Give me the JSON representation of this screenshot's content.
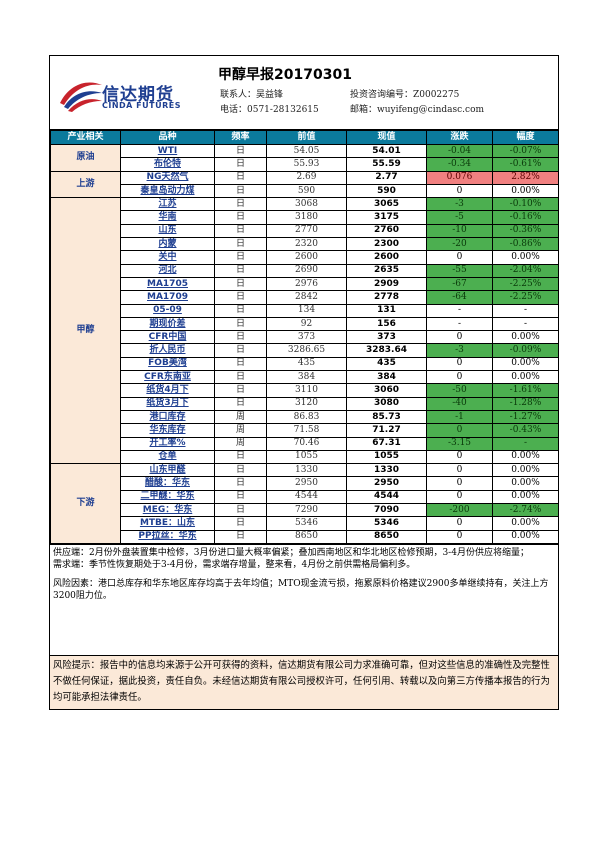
{
  "header": {
    "title": "甲醇早报20170301",
    "logo_cn": "信达期货",
    "logo_en": "CINDA FUTURES",
    "contact_label": "联系人：吴益锋",
    "license_label": "投资咨询编号：Z0002275",
    "phone_label": "电话：0571-28132615",
    "email_label": "邮箱：wuyifeng@cindasc.com"
  },
  "colors": {
    "header_bg": "#0b7a9c",
    "category_bg": "#fbe9d8",
    "down": "#4caf50",
    "up": "#f08080",
    "brand": "#1f3f91"
  },
  "table": {
    "headers": [
      "产业相关",
      "品种",
      "频率",
      "前值",
      "现值",
      "涨跌",
      "幅度"
    ],
    "groups": [
      {
        "category": "原油",
        "rows": [
          {
            "name": "WTI",
            "freq": "日",
            "prev": "54.05",
            "curr": "54.01",
            "chg": "-0.04",
            "pct": "-0.07%",
            "dir": "neg"
          },
          {
            "name": "布伦特",
            "freq": "日",
            "prev": "55.93",
            "curr": "55.59",
            "chg": "-0.34",
            "pct": "-0.61%",
            "dir": "neg"
          }
        ]
      },
      {
        "category": "上游",
        "rows": [
          {
            "name": "NG天然气",
            "freq": "日",
            "prev": "2.69",
            "curr": "2.77",
            "chg": "0.076",
            "pct": "2.82%",
            "dir": "pos"
          },
          {
            "name": "秦皇岛动力煤",
            "freq": "日",
            "prev": "590",
            "curr": "590",
            "chg": "0",
            "pct": "0.00%",
            "dir": "zero"
          }
        ]
      },
      {
        "category": "甲醇",
        "rows": [
          {
            "name": "江苏",
            "freq": "日",
            "prev": "3068",
            "curr": "3065",
            "chg": "-3",
            "pct": "-0.10%",
            "dir": "neg"
          },
          {
            "name": "华南",
            "freq": "日",
            "prev": "3180",
            "curr": "3175",
            "chg": "-5",
            "pct": "-0.16%",
            "dir": "neg"
          },
          {
            "name": "山东",
            "freq": "日",
            "prev": "2770",
            "curr": "2760",
            "chg": "-10",
            "pct": "-0.36%",
            "dir": "neg"
          },
          {
            "name": "内蒙",
            "freq": "日",
            "prev": "2320",
            "curr": "2300",
            "chg": "-20",
            "pct": "-0.86%",
            "dir": "neg"
          },
          {
            "name": "关中",
            "freq": "日",
            "prev": "2600",
            "curr": "2600",
            "chg": "0",
            "pct": "0.00%",
            "dir": "zero"
          },
          {
            "name": "河北",
            "freq": "日",
            "prev": "2690",
            "curr": "2635",
            "chg": "-55",
            "pct": "-2.04%",
            "dir": "neg"
          },
          {
            "name": "MA1705",
            "freq": "日",
            "prev": "2976",
            "curr": "2909",
            "chg": "-67",
            "pct": "-2.25%",
            "dir": "neg"
          },
          {
            "name": "MA1709",
            "freq": "日",
            "prev": "2842",
            "curr": "2778",
            "chg": "-64",
            "pct": "-2.25%",
            "dir": "neg"
          },
          {
            "name": "05-09",
            "freq": "日",
            "prev": "134",
            "curr": "131",
            "chg": "-",
            "pct": "-",
            "dir": "zero"
          },
          {
            "name": "期现价差",
            "freq": "日",
            "prev": "92",
            "curr": "156",
            "chg": "-",
            "pct": "-",
            "dir": "zero"
          },
          {
            "name": "CFR中国",
            "freq": "日",
            "prev": "373",
            "curr": "373",
            "chg": "0",
            "pct": "0.00%",
            "dir": "zero"
          },
          {
            "name": "折人民币",
            "freq": "日",
            "prev": "3286.65",
            "curr": "3283.64",
            "chg": "-3",
            "pct": "-0.09%",
            "dir": "neg"
          },
          {
            "name": "FOB美湾",
            "freq": "日",
            "prev": "435",
            "curr": "435",
            "chg": "0",
            "pct": "0.00%",
            "dir": "zero"
          },
          {
            "name": "CFR东南亚",
            "freq": "日",
            "prev": "384",
            "curr": "384",
            "chg": "0",
            "pct": "0.00%",
            "dir": "zero"
          },
          {
            "name": "纸货4月下",
            "freq": "日",
            "prev": "3110",
            "curr": "3060",
            "chg": "-50",
            "pct": "-1.61%",
            "dir": "neg"
          },
          {
            "name": "纸货3月下",
            "freq": "日",
            "prev": "3120",
            "curr": "3080",
            "chg": "-40",
            "pct": "-1.28%",
            "dir": "neg"
          },
          {
            "name": "港口库存",
            "freq": "周",
            "prev": "86.83",
            "curr": "85.73",
            "chg": "-1",
            "pct": "-1.27%",
            "dir": "neg"
          },
          {
            "name": "华东库存",
            "freq": "周",
            "prev": "71.58",
            "curr": "71.27",
            "chg": "0",
            "pct": "-0.43%",
            "dir": "neg"
          },
          {
            "name": "开工率%",
            "freq": "周",
            "prev": "70.46",
            "curr": "67.31",
            "chg": "-3.15",
            "pct": "-",
            "dir": "neg"
          },
          {
            "name": "仓单",
            "freq": "日",
            "prev": "1055",
            "curr": "1055",
            "chg": "0",
            "pct": "0.00%",
            "dir": "zero"
          }
        ]
      },
      {
        "category": "下游",
        "rows": [
          {
            "name": "山东甲醛",
            "freq": "日",
            "prev": "1330",
            "curr": "1330",
            "chg": "0",
            "pct": "0.00%",
            "dir": "zero"
          },
          {
            "name": "醋酸：华东",
            "freq": "日",
            "prev": "2950",
            "curr": "2950",
            "chg": "0",
            "pct": "0.00%",
            "dir": "zero"
          },
          {
            "name": "二甲醚：华东",
            "freq": "日",
            "prev": "4544",
            "curr": "4544",
            "chg": "0",
            "pct": "0.00%",
            "dir": "zero"
          },
          {
            "name": "MEG：华东",
            "freq": "日",
            "prev": "7290",
            "curr": "7090",
            "chg": "-200",
            "pct": "-2.74%",
            "dir": "neg"
          },
          {
            "name": "MTBE：山东",
            "freq": "日",
            "prev": "5346",
            "curr": "5346",
            "chg": "0",
            "pct": "0.00%",
            "dir": "zero"
          },
          {
            "name": "PP拉丝：华东",
            "freq": "日",
            "prev": "8650",
            "curr": "8650",
            "chg": "0",
            "pct": "0.00%",
            "dir": "zero"
          }
        ]
      }
    ]
  },
  "notes": {
    "supply": "供应端：2月份外盘装置集中检修，3月份进口量大概率偏紧；叠加西南地区和华北地区检修预期，3-4月份供应将缩量；",
    "demand": "需求端：季节性恢复期处于3-4月份，需求端存增量，整来看，4月份之前供需格局偏利多。",
    "risk_factors": "风险因素：港口总库存和华东地区库存均高于去年均值；MTO现金流亏损，拖累原料价格建议2900多单继续持有，关注上方3200阻力位。"
  },
  "disclaimer": "风险提示：报告中的信息均来源于公开可获得的资料，信达期货有限公司力求准确可靠，但对这些信息的准确性及完整性不做任何保证，据此投资，责任自负。未经信达期货有限公司授权许可，任何引用、转载以及向第三方传播本报告的行为均可能承担法律责任。"
}
